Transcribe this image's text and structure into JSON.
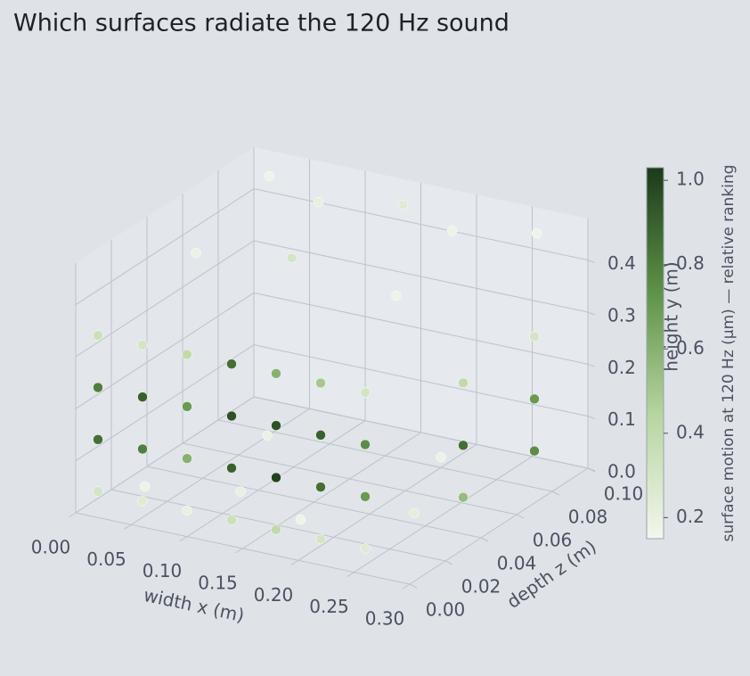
{
  "chart_data": {
    "type": "scatter3d",
    "title": "Which surfaces radiate the 120 Hz sound",
    "xlabel": "width  x (m)",
    "ylabel": "height  y (m)",
    "zlabel": "depth  z (m)",
    "colorbar_label": "surface motion at 120 Hz  (µm)  — relative ranking",
    "colormap": [
      "#f3f6ee",
      "#b7d5a0",
      "#5e9148",
      "#1c3a1a"
    ],
    "clim": [
      0.15,
      1.03
    ],
    "cticks": [
      0.2,
      0.4,
      0.6,
      0.8,
      {
        "value": 1.0,
        "label": "1.0"
      }
    ],
    "xlim": [
      0,
      0.3
    ],
    "ylim": [
      0,
      0.48
    ],
    "zlim": [
      0,
      0.1
    ],
    "xticks": [
      {
        "value": 0,
        "label": "0.00"
      },
      0.05,
      {
        "value": 0.1,
        "label": "0.10"
      },
      0.15,
      {
        "value": 0.2,
        "label": "0.20"
      },
      0.25,
      {
        "value": 0.3,
        "label": "0.30"
      }
    ],
    "yticks": [
      {
        "value": 0,
        "label": "0.0"
      },
      0.1,
      0.2,
      0.3,
      0.4
    ],
    "zticks": [
      {
        "value": 0,
        "label": "0.00"
      },
      0.02,
      0.04,
      0.06,
      0.08,
      {
        "value": 0.1,
        "label": "0.10"
      }
    ],
    "grid": true,
    "x": [
      0.03,
      0.09,
      0.15,
      0.21,
      0.27,
      0.06,
      0.13,
      0.24,
      0.03,
      0.1,
      0.17,
      0.24,
      0.06,
      0.2,
      0.3,
      0.3,
      0.3,
      0.3,
      0.3,
      0.3,
      0.02,
      0.02,
      0.02,
      0.02,
      0.06,
      0.06,
      0.06,
      0.06,
      0.1,
      0.1,
      0.1,
      0.1,
      0.14,
      0.14,
      0.14,
      0.14,
      0.18,
      0.18,
      0.18,
      0.18,
      0.22,
      0.22,
      0.22,
      0.22,
      0.26,
      0.26,
      0.26,
      0.26
    ],
    "y": [
      0.46,
      0.46,
      0.46,
      0.46,
      0.46,
      0.46,
      0.46,
      0.46,
      0.02,
      0.02,
      0.02,
      0.02,
      0.02,
      0.02,
      0.1,
      0.1,
      0.2,
      0.2,
      0.32,
      0.32,
      0.05,
      0.15,
      0.25,
      0.35,
      0.05,
      0.15,
      0.25,
      0.35,
      0.05,
      0.15,
      0.25,
      0.35,
      0.05,
      0.15,
      0.25,
      0.35,
      0.05,
      0.15,
      0.25,
      0.35,
      0.05,
      0.15,
      0.25,
      0.35,
      0.05,
      0.15,
      0.25,
      0.35
    ],
    "z": [
      0.09,
      0.08,
      0.09,
      0.08,
      0.09,
      0.03,
      0.04,
      0.03,
      0.02,
      0.03,
      0.02,
      0.04,
      0.07,
      0.08,
      0.03,
      0.07,
      0.03,
      0.07,
      0.03,
      0.07,
      0,
      0,
      0,
      0,
      0,
      0,
      0,
      0,
      0,
      0,
      0,
      0,
      0,
      0,
      0,
      0,
      0,
      0,
      0,
      0,
      0,
      0,
      0,
      0,
      0,
      0,
      0,
      0
    ],
    "values": [
      0.17,
      0.2,
      0.25,
      0.18,
      0.17,
      0.19,
      0.3,
      0.18,
      0.18,
      0.2,
      0.17,
      0.22,
      0.19,
      0.18,
      0.55,
      0.75,
      0.85,
      0.7,
      0.4,
      0.3,
      0.3,
      0.85,
      0.8,
      0.35,
      0.25,
      0.8,
      0.9,
      0.3,
      0.2,
      0.6,
      0.7,
      0.4,
      0.35,
      0.9,
      0.95,
      0.85,
      0.4,
      1.0,
      0.95,
      0.6,
      0.3,
      0.85,
      0.9,
      0.5,
      0.25,
      0.7,
      0.75,
      0.3
    ]
  }
}
